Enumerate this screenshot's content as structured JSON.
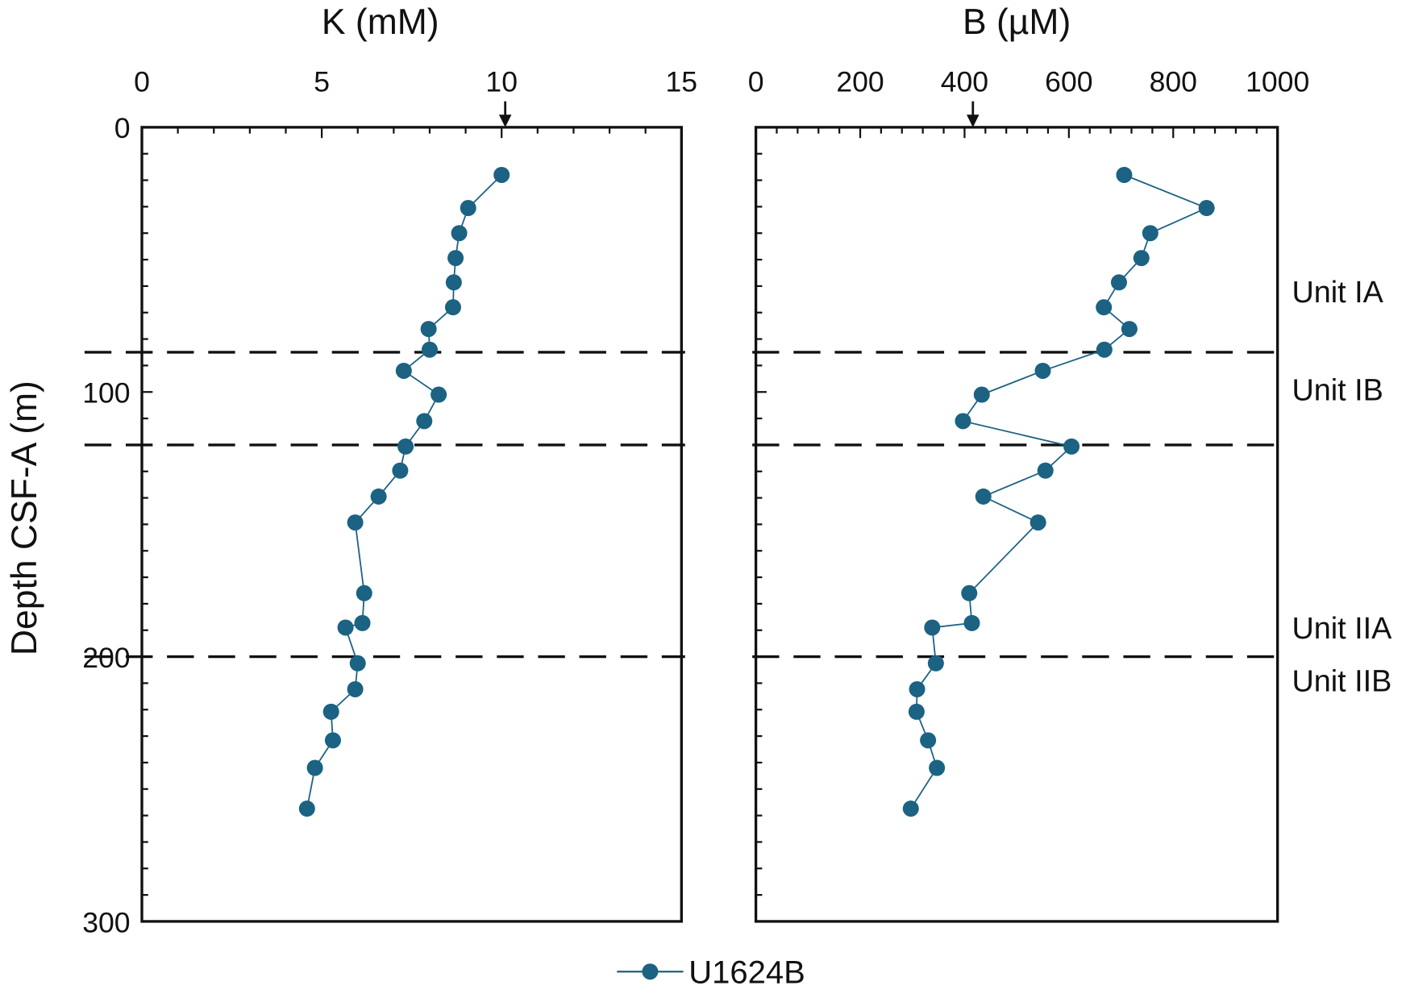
{
  "chart_data": [
    {
      "type": "line",
      "xlabel": "K (mM)",
      "ylabel": "Depth CSF-A (m)",
      "xlim": [
        0,
        15
      ],
      "ylim": [
        300,
        0
      ],
      "x_ticks": [
        "0",
        "5",
        "10",
        "15"
      ],
      "y_ticks": [
        "0",
        "100",
        "200",
        "300"
      ],
      "seawater_arrow": 10.1,
      "series": [
        {
          "name": "U1624B",
          "color": "#1b6283",
          "depth": [
            18,
            30.5,
            40,
            49.4,
            58.6,
            68,
            76.2,
            84,
            92,
            101,
            111,
            120.6,
            129.7,
            139.5,
            149.3,
            176,
            187.3,
            189,
            202.5,
            212.3,
            220.8,
            231.6,
            242,
            257.4
          ],
          "values": [
            10.0,
            9.07,
            8.82,
            8.72,
            8.67,
            8.65,
            7.97,
            8.0,
            7.28,
            8.25,
            7.85,
            7.33,
            7.18,
            6.58,
            5.93,
            6.18,
            6.13,
            5.66,
            6.0,
            5.93,
            5.26,
            5.31,
            4.81,
            4.59
          ]
        }
      ]
    },
    {
      "type": "line",
      "xlabel": "B (µM)",
      "xlim": [
        0,
        1000
      ],
      "ylim": [
        300,
        0
      ],
      "x_ticks": [
        "0",
        "200",
        "400",
        "600",
        "800",
        "1000"
      ],
      "seawater_arrow": 416,
      "series": [
        {
          "name": "U1624B",
          "color": "#1b6283",
          "depth": [
            18,
            30.5,
            40,
            49.4,
            58.6,
            68,
            76.2,
            84,
            92,
            101,
            111,
            120.6,
            129.7,
            139.5,
            149.3,
            176,
            187.3,
            189,
            202.5,
            212.3,
            220.8,
            231.6,
            242,
            257.4
          ],
          "values": [
            706,
            864,
            756,
            739,
            696,
            667,
            716,
            668,
            550,
            433,
            397,
            605,
            555,
            436,
            541,
            409,
            414,
            338,
            345,
            309,
            308,
            330,
            347,
            297
          ]
        }
      ]
    }
  ],
  "unit_boundaries": [
    85,
    120,
    200
  ],
  "unit_labels": [
    {
      "label": "Unit IA",
      "depth": 62
    },
    {
      "label": "Unit IB",
      "depth": 99
    },
    {
      "label": "Unit IIA",
      "depth": 189
    },
    {
      "label": "Unit IIB",
      "depth": 209
    }
  ],
  "legend": {
    "label": "U1624B",
    "placement": "bottom-center"
  }
}
